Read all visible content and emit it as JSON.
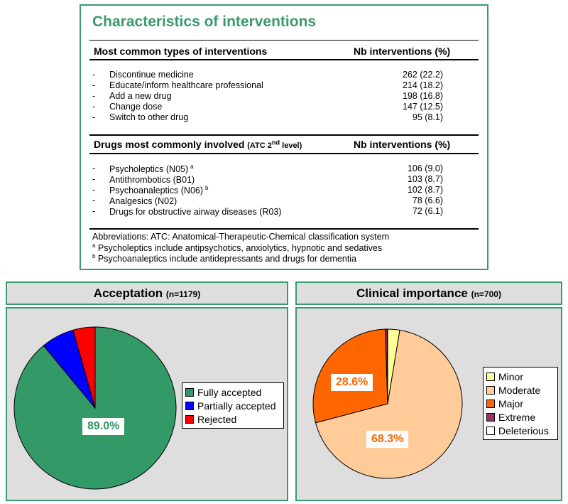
{
  "table": {
    "title": "Characteristics of interventions",
    "section1": {
      "heading": "Most common types of interventions",
      "col_heading": "Nb interventions (%)",
      "rows": [
        {
          "label": "Discontinue medicine",
          "value": "262 (22.2)"
        },
        {
          "label": "Educate/inform healthcare professional",
          "value": "214 (18.2)"
        },
        {
          "label": "Add a new drug",
          "value": "198 (16.8)"
        },
        {
          "label": "Change dose",
          "value": "147 (12.5)"
        },
        {
          "label": "Switch to other drug",
          "value": "95 (8.1)"
        }
      ]
    },
    "section2": {
      "heading": "Drugs most commonly involved",
      "heading_small": "(ATC 2",
      "heading_sup": "nd",
      "heading_small_end": " level)",
      "col_heading": "Nb interventions (%)",
      "rows": [
        {
          "label": "Psycholeptics (N05)",
          "sup": "a",
          "value": "106 (9.0)"
        },
        {
          "label": "Antithrombotics (B01)",
          "sup": "",
          "value": "103 (8.7)"
        },
        {
          "label": "Psychoanaleptics (N06)",
          "sup": "b",
          "value": "102 (8.7)"
        },
        {
          "label": "Analgesics (N02)",
          "sup": "",
          "value": "78 (6.6)"
        },
        {
          "label": "Drugs for obstructive airway diseases (R03)",
          "sup": "",
          "value": "72 (6.1)"
        }
      ]
    },
    "dash": "-",
    "notes": {
      "abbr": "Abbreviations: ATC: Anatomical-Therapeutic-Chemical classification system",
      "a_sup": "a",
      "a_text": " Psycholeptics include antipsychotics, anxiolytics, hypnotic and sedatives",
      "b_sup": "b",
      "b_text": " Psychoanaleptics include antidepressants and drugs for dementia"
    }
  },
  "chart_data": [
    {
      "type": "pie",
      "title": "Acceptation",
      "title_n": "(n=1179)",
      "categories": [
        "Fully accepted",
        "Partially accepted",
        "Rejected"
      ],
      "values": [
        89.0,
        6.6,
        4.4
      ],
      "colors": [
        "#339966",
        "#0000ff",
        "#ff0000"
      ],
      "data_labels": [
        "89.0%",
        "",
        ""
      ],
      "label_color": "#339966",
      "legend_position": "right"
    },
    {
      "type": "pie",
      "title": "Clinical importance",
      "title_n": "(n=700)",
      "categories": [
        "Minor",
        "Moderate",
        "Major",
        "Extreme",
        "Deleterious"
      ],
      "values": [
        2.6,
        68.3,
        28.6,
        0.4,
        0.1
      ],
      "colors": [
        "#ffff99",
        "#ffcc99",
        "#ff6600",
        "#993366",
        "#ffffff"
      ],
      "data_labels": [
        "",
        "68.3%",
        "28.6%",
        "",
        ""
      ],
      "label_color": "#ff6600",
      "legend_position": "right"
    }
  ]
}
